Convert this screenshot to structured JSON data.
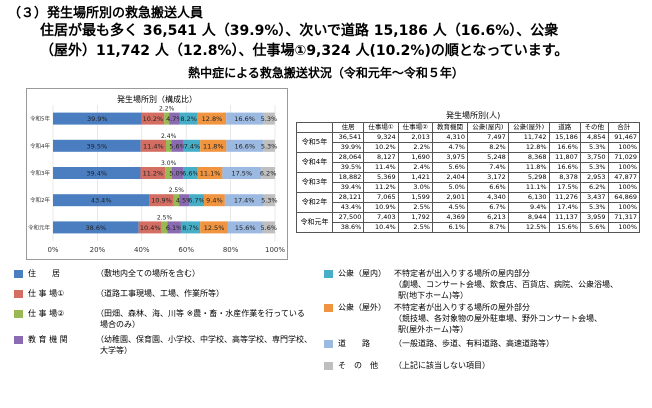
{
  "header": {
    "heading": "（３）発生場所別の救急搬送人員",
    "line1": "住居が最も多く 36,541 人（39.9%）、次いで道路 15,186 人（16.6%）、公衆",
    "line2": "（屋外）11,742 人（12.8%）、仕事場①9,324 人(10.2%)の順となっています。",
    "figure_title": "熱中症による救急搬送状況（令和元年～令和５年）"
  },
  "colors": {
    "residence": "#4a7ec1",
    "work1": "#d46e62",
    "work2": "#98b954",
    "education": "#8a6ab0",
    "public_in": "#46aec6",
    "public_out": "#f0943f",
    "road": "#9cb9e2",
    "other": "#bfbfbf"
  },
  "chart_data": {
    "type": "bar",
    "orientation": "horizontal",
    "stacked": true,
    "title": "発生場所別（構成比）",
    "categories": [
      "令和5年",
      "令和4年",
      "令和3年",
      "令和2年",
      "令和元年"
    ],
    "category_labels": [
      "令和5年",
      "令和4年",
      "令和3年",
      "令和2年",
      "令和元年"
    ],
    "xlim": [
      0,
      100
    ],
    "x_ticks": [
      "0%",
      "20%",
      "40%",
      "60%",
      "80%",
      "100%"
    ],
    "series": [
      {
        "key": "residence",
        "values": [
          39.9,
          39.5,
          39.4,
          43.4,
          38.6
        ],
        "labels": [
          "39.9%",
          "39.5%",
          "39.4%",
          "43.4%",
          "38.6%"
        ]
      },
      {
        "key": "work1",
        "values": [
          10.2,
          11.4,
          11.2,
          10.9,
          10.4
        ],
        "labels": [
          "10.2%",
          "11.4%",
          "11.2%",
          "10.9%",
          "10.4%"
        ]
      },
      {
        "key": "work2",
        "values": [
          2.2,
          2.4,
          3.0,
          2.5,
          2.5
        ],
        "labels": [
          "2.2%",
          "2.4%",
          "3.0%",
          "2.5%",
          "2.5%"
        ]
      },
      {
        "key": "education",
        "values": [
          4.7,
          5.6,
          5.0,
          4.5,
          6.1
        ],
        "labels": [
          "4.7%",
          "5.6%",
          "5.0%",
          "4.5%",
          "6.1%"
        ]
      },
      {
        "key": "public_in",
        "values": [
          8.2,
          7.4,
          6.6,
          6.7,
          8.7
        ],
        "labels": [
          "8.2%",
          "7.4%",
          "6.6%",
          "6.7%",
          "8.7%"
        ]
      },
      {
        "key": "public_out",
        "values": [
          12.8,
          11.8,
          11.1,
          9.4,
          12.5
        ],
        "labels": [
          "12.8%",
          "11.8%",
          "11.1%",
          "9.4%",
          "12.5%"
        ]
      },
      {
        "key": "road",
        "values": [
          16.6,
          16.6,
          17.5,
          17.4,
          15.6
        ],
        "labels": [
          "16.6%",
          "16.6%",
          "17.5%",
          "17.4%",
          "15.6%"
        ]
      },
      {
        "key": "other",
        "values": [
          5.3,
          5.3,
          6.2,
          5.3,
          5.6
        ],
        "labels": [
          "5.3%",
          "5.3%",
          "6.2%",
          "5.3%",
          "5.6%"
        ]
      }
    ]
  },
  "table": {
    "subtitle": "発生場所別(人)",
    "headers": [
      "住居",
      "仕事場①",
      "仕事場②",
      "教育機関",
      "公衆(屋内)",
      "公衆(屋外)",
      "道路",
      "その他",
      "合計"
    ],
    "rows": [
      {
        "year": "令和5年",
        "counts": [
          "36,541",
          "9,324",
          "2,013",
          "4,310",
          "7,497",
          "11,742",
          "15,186",
          "4,854",
          "91,467"
        ],
        "pct": [
          "39.9%",
          "10.2%",
          "2.2%",
          "4.7%",
          "8.2%",
          "12.8%",
          "16.6%",
          "5.3%",
          "100%"
        ]
      },
      {
        "year": "令和4年",
        "counts": [
          "28,064",
          "8,127",
          "1,690",
          "3,975",
          "5,248",
          "8,368",
          "11,807",
          "3,750",
          "71,029"
        ],
        "pct": [
          "39.5%",
          "11.4%",
          "2.4%",
          "5.6%",
          "7.4%",
          "11.8%",
          "16.6%",
          "5.3%",
          "100%"
        ]
      },
      {
        "year": "令和3年",
        "counts": [
          "18,882",
          "5,369",
          "1,421",
          "2,404",
          "3,172",
          "5,298",
          "8,378",
          "2,953",
          "47,877"
        ],
        "pct": [
          "39.4%",
          "11.2%",
          "3.0%",
          "5.0%",
          "6.6%",
          "11.1%",
          "17.5%",
          "6.2%",
          "100%"
        ]
      },
      {
        "year": "令和2年",
        "counts": [
          "28,121",
          "7,065",
          "1,599",
          "2,901",
          "4,340",
          "6,130",
          "11,276",
          "3,437",
          "64,869"
        ],
        "pct": [
          "43.4%",
          "10.9%",
          "2.5%",
          "4.5%",
          "6.7%",
          "9.4%",
          "17.4%",
          "5.3%",
          "100%"
        ]
      },
      {
        "year": "令和元年",
        "counts": [
          "27,500",
          "7,403",
          "1,792",
          "4,369",
          "6,213",
          "8,944",
          "11,137",
          "3,959",
          "71,317"
        ],
        "pct": [
          "38.6%",
          "10.4%",
          "2.5%",
          "6.1%",
          "8.7%",
          "12.5%",
          "15.6%",
          "5.6%",
          "100%"
        ]
      }
    ]
  },
  "legend": {
    "residence": {
      "label": "住　　居",
      "desc": "（敷地内全ての場所を含む）"
    },
    "work1": {
      "label": "仕 事 場①",
      "desc": "（道路工事現場、工場、作業所等）"
    },
    "work2": {
      "label": "仕 事 場②",
      "desc": "（田畑、森林、海、川等 ※農・畜・水産作業を行っている",
      "desc2": "場合のみ）"
    },
    "education": {
      "label": "教 育 機 関",
      "desc": "（幼稚園、保育園、小学校、中学校、高等学校、専門学校、",
      "desc2": "大学等）"
    },
    "public_in": {
      "label": "公衆（屋内）",
      "desc": "不特定者が出入りする場所の屋内部分",
      "desc2": "（劇場、コンサート会場、飲食店、百貨店、病院、公衆浴場、",
      "desc3": "駅(地下ホーム)等）"
    },
    "public_out": {
      "label": "公衆（屋外）",
      "desc": "不特定者が出入りする場所の屋外部分",
      "desc2": "（競技場、各対象物の屋外駐車場、野外コンサート会場、",
      "desc3": "駅(屋外ホーム)等）"
    },
    "road": {
      "label": "道　　路",
      "desc": "（一般道路、歩道、有料道路、高速道路等）"
    },
    "other": {
      "label": "そ　の　他",
      "desc": "（上記に該当しない項目）"
    }
  }
}
